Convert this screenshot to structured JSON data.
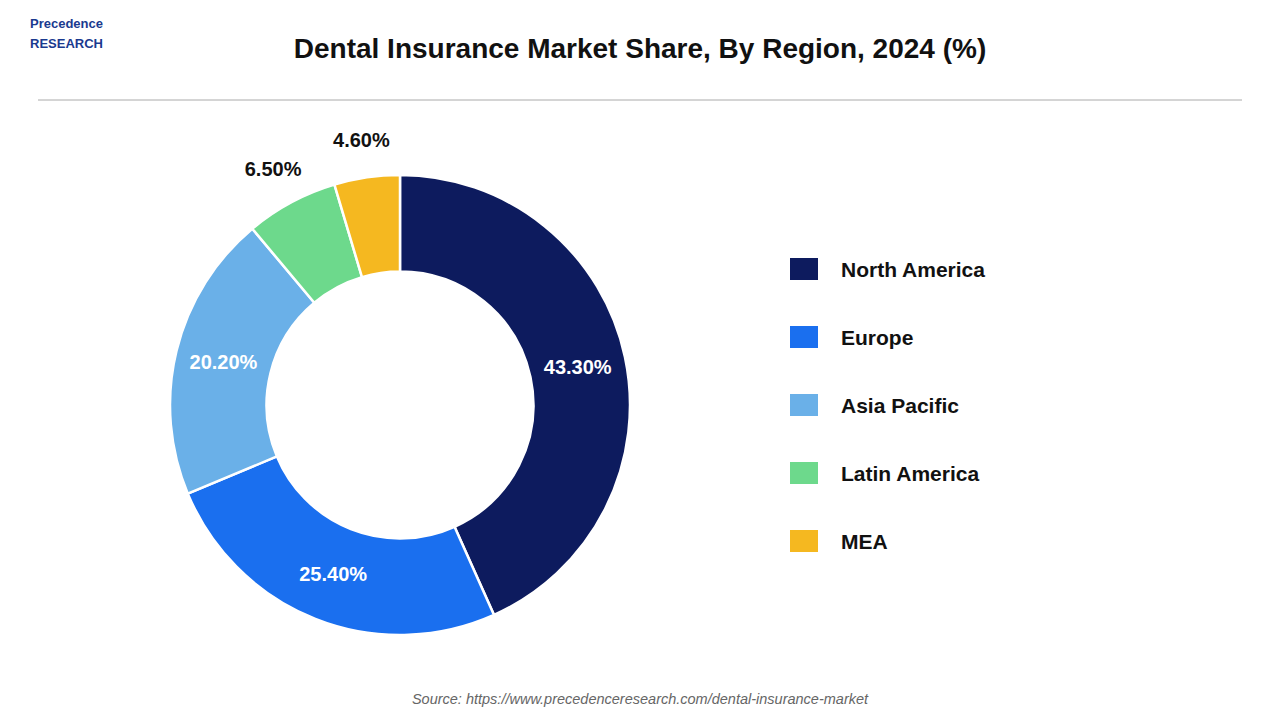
{
  "chart_data": {
    "type": "pie",
    "title": "Dental Insurance Market Share, By Region, 2024 (%)",
    "categories": [
      "North America",
      "Europe",
      "Asia Pacific",
      "Latin America",
      "MEA"
    ],
    "values": [
      43.3,
      25.4,
      20.2,
      6.5,
      4.6
    ],
    "value_labels": [
      "43.30%",
      "25.40%",
      "20.20%",
      "6.50%",
      "4.60%"
    ],
    "colors": [
      "#0d1b5e",
      "#1a6fef",
      "#6ab0e8",
      "#6dd98c",
      "#f5b820"
    ],
    "data_labels": true,
    "legend": "right",
    "annotations": [
      "Source: https://www.precedenceresearch.com/dental-insurance-market",
      "Precedence\nRESEARCH"
    ]
  }
}
